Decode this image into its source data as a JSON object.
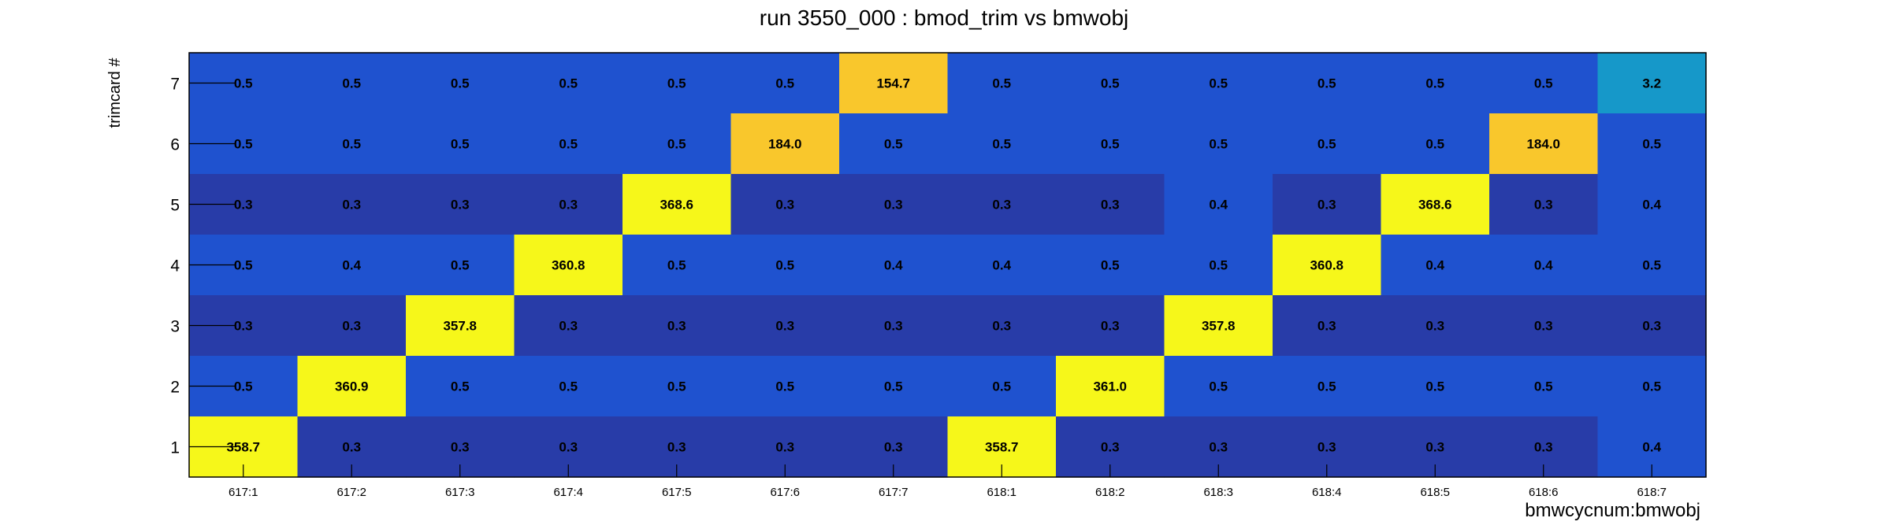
{
  "chart_data": {
    "type": "heatmap",
    "title": "run 3550_000 : bmod_trim vs bmwobj",
    "xlabel": "bmwcycnum:bmwobj",
    "ylabel": "trimcard #",
    "x_categories": [
      "617:1",
      "617:2",
      "617:3",
      "617:4",
      "617:5",
      "617:6",
      "617:7",
      "618:1",
      "618:2",
      "618:3",
      "618:4",
      "618:5",
      "618:6",
      "618:7"
    ],
    "y_categories": [
      "1",
      "2",
      "3",
      "4",
      "5",
      "6",
      "7"
    ],
    "rows": [
      {
        "y": "7",
        "values": [
          0.5,
          0.5,
          0.5,
          0.5,
          0.5,
          0.5,
          154.7,
          0.5,
          0.5,
          0.5,
          0.5,
          0.5,
          0.5,
          3.2
        ]
      },
      {
        "y": "6",
        "values": [
          0.5,
          0.5,
          0.5,
          0.5,
          0.5,
          184.0,
          0.5,
          0.5,
          0.5,
          0.5,
          0.5,
          0.5,
          184.0,
          0.5
        ]
      },
      {
        "y": "5",
        "values": [
          0.3,
          0.3,
          0.3,
          0.3,
          368.6,
          0.3,
          0.3,
          0.3,
          0.3,
          0.4,
          0.3,
          368.6,
          0.3,
          0.4
        ]
      },
      {
        "y": "4",
        "values": [
          0.5,
          0.4,
          0.5,
          360.8,
          0.5,
          0.5,
          0.4,
          0.4,
          0.5,
          0.5,
          360.8,
          0.4,
          0.4,
          0.5
        ]
      },
      {
        "y": "3",
        "values": [
          0.3,
          0.3,
          357.8,
          0.3,
          0.3,
          0.3,
          0.3,
          0.3,
          0.3,
          357.8,
          0.3,
          0.3,
          0.3,
          0.3
        ]
      },
      {
        "y": "2",
        "values": [
          0.5,
          360.9,
          0.5,
          0.5,
          0.5,
          0.5,
          0.5,
          0.5,
          361.0,
          0.5,
          0.5,
          0.5,
          0.5,
          0.5
        ]
      },
      {
        "y": "1",
        "values": [
          358.7,
          0.3,
          0.3,
          0.3,
          0.3,
          0.3,
          0.3,
          358.7,
          0.3,
          0.3,
          0.3,
          0.3,
          0.3,
          0.4
        ]
      }
    ],
    "color_map": [
      "#283ca8",
      "#1f52cf",
      "#1698c9",
      "#f9c72c",
      "#f6f71a"
    ],
    "legend": "none",
    "grid": false
  }
}
